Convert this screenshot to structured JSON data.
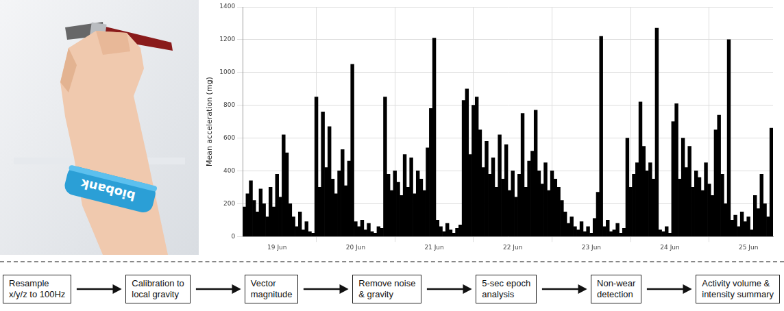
{
  "photo": {
    "band_text": "biobank"
  },
  "chart_data": {
    "type": "bar",
    "y_label": "Mean acceleration (mg)",
    "categories": [
      null,
      null,
      null,
      null,
      null,
      null,
      null,
      null,
      null,
      null,
      "19 Jun",
      null,
      null,
      null,
      null,
      null,
      null,
      null,
      null,
      null,
      null,
      null,
      null,
      null,
      null,
      null,
      null,
      null,
      null,
      null,
      null,
      null,
      null,
      null,
      "20 Jun",
      null,
      null,
      null,
      null,
      null,
      null,
      null,
      null,
      null,
      null,
      null,
      null,
      null,
      null,
      null,
      null,
      null,
      null,
      null,
      null,
      null,
      null,
      null,
      "21 Jun",
      null,
      null,
      null,
      null,
      null,
      null,
      null,
      null,
      null,
      null,
      null,
      null,
      null,
      null,
      null,
      null,
      null,
      null,
      null,
      null,
      null,
      null,
      null,
      "22 Jun",
      null,
      null,
      null,
      null,
      null,
      null,
      null,
      null,
      null,
      null,
      null,
      null,
      null,
      null,
      null,
      null,
      null,
      null,
      null,
      null,
      null,
      null,
      null,
      "23 Jun",
      null,
      null,
      null,
      null,
      null,
      null,
      null,
      null,
      null,
      null,
      null,
      null,
      null,
      null,
      null,
      null,
      null,
      null,
      null,
      null,
      null,
      null,
      null,
      "24 Jun",
      null,
      null,
      null,
      null,
      null,
      null,
      null,
      null,
      null,
      null,
      null,
      null,
      null,
      null,
      null,
      null,
      null,
      null,
      null,
      null,
      null,
      null,
      null,
      "25 Jun",
      null,
      null,
      null,
      null,
      null,
      null,
      null
    ],
    "values": [
      180,
      260,
      340,
      220,
      150,
      290,
      200,
      120,
      300,
      180,
      380,
      240,
      620,
      510,
      200,
      120,
      60,
      150,
      40,
      90,
      30,
      20,
      850,
      300,
      760,
      420,
      670,
      350,
      260,
      400,
      530,
      310,
      460,
      1050,
      90,
      60,
      100,
      40,
      80,
      30,
      20,
      60,
      50,
      850,
      380,
      280,
      400,
      330,
      250,
      500,
      300,
      480,
      260,
      400,
      350,
      280,
      540,
      780,
      1210,
      100,
      60,
      30,
      80,
      40,
      20,
      50,
      70,
      830,
      900,
      500,
      800,
      850,
      650,
      420,
      580,
      380,
      480,
      300,
      620,
      350,
      560,
      280,
      400,
      240,
      380,
      750,
      300,
      460,
      520,
      770,
      400,
      320,
      450,
      280,
      400,
      350,
      300,
      220,
      150,
      80,
      120,
      60,
      40,
      90,
      30,
      60,
      20,
      110,
      270,
      1220,
      60,
      100,
      30,
      40,
      80,
      20,
      50,
      600,
      300,
      380,
      450,
      820,
      550,
      400,
      450,
      350,
      1270,
      40,
      30,
      60,
      20,
      700,
      810,
      350,
      600,
      420,
      550,
      300,
      400,
      360,
      280,
      450,
      320,
      250,
      650,
      740,
      380,
      200,
      1200,
      100,
      130,
      60,
      150,
      90,
      120,
      40,
      250,
      170,
      380,
      200,
      120,
      660
    ],
    "color": "#000000",
    "ylim": [
      0,
      1400
    ],
    "yticks": [
      0,
      200,
      400,
      600,
      800,
      1000,
      1200,
      1400
    ],
    "grid": true
  },
  "pipeline": {
    "steps": [
      [
        "Resample",
        "x/y/z to 100Hz"
      ],
      [
        "Calibration to",
        "local gravity"
      ],
      [
        "Vector",
        "magnitude"
      ],
      [
        "Remove noise",
        "& gravity"
      ],
      [
        "5-sec epoch",
        "analysis"
      ],
      [
        "Non-wear",
        "detection"
      ],
      [
        "Activity volume &",
        "intensity summary"
      ]
    ]
  }
}
